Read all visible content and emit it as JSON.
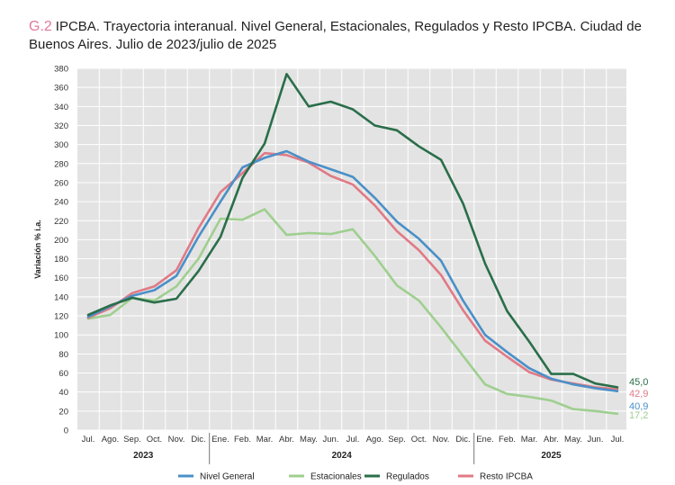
{
  "title": {
    "figure_label": "G.2",
    "text": "IPCBA. Trayectoria interanual. Nivel General, Estacionales, Regulados y Resto IPCBA. Ciudad de Buenos Aires. Julio de 2023/julio de 2025"
  },
  "chart_data": {
    "type": "line",
    "title": "IPCBA. Trayectoria interanual. Nivel General, Estacionales, Regulados y Resto IPCBA. Ciudad de Buenos Aires. Julio de 2023/julio de 2025",
    "ylabel": "Variación % i.a.",
    "xlabel": "",
    "ylim": [
      0,
      380
    ],
    "ytick_step": 20,
    "grid": true,
    "legend_position": "bottom",
    "categories": [
      "Jul.",
      "Ago.",
      "Sep.",
      "Oct.",
      "Nov.",
      "Dic.",
      "Ene.",
      "Feb.",
      "Mar.",
      "Abr.",
      "May.",
      "Jun.",
      "Jul.",
      "Ago.",
      "Sep.",
      "Oct.",
      "Nov.",
      "Dic.",
      "Ene.",
      "Feb.",
      "Mar.",
      "Abr.",
      "May.",
      "Jun.",
      "Jul."
    ],
    "year_groups": [
      {
        "label": "2023",
        "count": 6
      },
      {
        "label": "2024",
        "count": 12
      },
      {
        "label": "2025",
        "count": 7
      }
    ],
    "series": [
      {
        "name": "Nivel General",
        "color": "#4a90c8",
        "end_label": "40,9",
        "values": [
          119,
          130,
          141,
          147,
          162,
          203,
          240,
          276,
          286,
          293,
          282,
          274,
          266,
          244,
          219,
          201,
          178,
          136,
          100,
          82,
          65,
          54,
          48,
          44,
          40.9
        ]
      },
      {
        "name": "Estacionales",
        "color": "#9fcf8f",
        "end_label": "17,2",
        "values": [
          117,
          121,
          139,
          136,
          151,
          180,
          222,
          221,
          232,
          205,
          207,
          206,
          211,
          183,
          152,
          136,
          108,
          78,
          48,
          38,
          35,
          31,
          22,
          20,
          17.2
        ]
      },
      {
        "name": "Regulados",
        "color": "#2a6e4a",
        "end_label": "45,0",
        "values": [
          121,
          131,
          139,
          134,
          138,
          167,
          203,
          265,
          301,
          374,
          340,
          345,
          337,
          320,
          315,
          298,
          284,
          238,
          175,
          125,
          93,
          59,
          59,
          49,
          45.0
        ]
      },
      {
        "name": "Resto IPCBA",
        "color": "#e07a86",
        "end_label": "42,9",
        "values": [
          118,
          128,
          144,
          151,
          168,
          212,
          250,
          270,
          291,
          289,
          281,
          267,
          258,
          236,
          209,
          189,
          163,
          126,
          94,
          77,
          61,
          53,
          49,
          45,
          42.9
        ]
      }
    ]
  }
}
